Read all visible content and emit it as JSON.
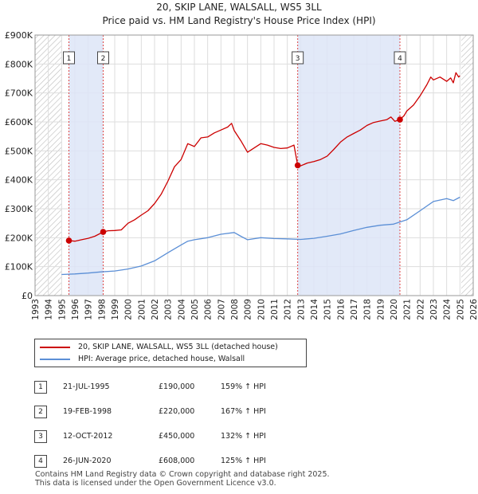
{
  "chart_data": {
    "type": "line",
    "title": "20, SKIP LANE, WALSALL, WS5 3LL",
    "subtitle": "Price paid vs. HM Land Registry's House Price Index (HPI)",
    "xlim": [
      1993,
      2026
    ],
    "ylim": [
      0,
      900000
    ],
    "y_ticks": [
      {
        "value": 0,
        "label": "£0"
      },
      {
        "value": 100000,
        "label": "£100K"
      },
      {
        "value": 200000,
        "label": "£200K"
      },
      {
        "value": 300000,
        "label": "£300K"
      },
      {
        "value": 400000,
        "label": "£400K"
      },
      {
        "value": 500000,
        "label": "£500K"
      },
      {
        "value": 600000,
        "label": "£600K"
      },
      {
        "value": 700000,
        "label": "£700K"
      },
      {
        "value": 800000,
        "label": "£800K"
      },
      {
        "value": 900000,
        "label": "£900K"
      }
    ],
    "x_ticks": [
      "1993",
      "1994",
      "1995",
      "1996",
      "1997",
      "1998",
      "1999",
      "2000",
      "2001",
      "2002",
      "2003",
      "2004",
      "2005",
      "2006",
      "2007",
      "2008",
      "2009",
      "2010",
      "2011",
      "2012",
      "2013",
      "2014",
      "2015",
      "2016",
      "2017",
      "2018",
      "2019",
      "2020",
      "2021",
      "2022",
      "2023",
      "2024",
      "2025",
      "2026"
    ],
    "hatched_ranges": [
      [
        1993,
        1995.0
      ],
      [
        2025.1,
        2026
      ]
    ],
    "shaded_ranges": [
      [
        1995.55,
        1998.13
      ],
      [
        2012.78,
        2020.48
      ]
    ],
    "series": [
      {
        "name": "20, SKIP LANE, WALSALL, WS5 3LL (detached house)",
        "color": "#cc0000",
        "points": [
          [
            1995.55,
            190000
          ],
          [
            1996.0,
            188000
          ],
          [
            1996.5,
            193000
          ],
          [
            1997.0,
            198000
          ],
          [
            1997.5,
            205000
          ],
          [
            1998.13,
            220000
          ],
          [
            1998.5,
            224000
          ],
          [
            1999.0,
            225000
          ],
          [
            1999.5,
            227000
          ],
          [
            2000.0,
            250000
          ],
          [
            2000.5,
            262000
          ],
          [
            2001.0,
            278000
          ],
          [
            2001.5,
            293000
          ],
          [
            2002.0,
            318000
          ],
          [
            2002.5,
            350000
          ],
          [
            2003.0,
            395000
          ],
          [
            2003.5,
            445000
          ],
          [
            2004.0,
            470000
          ],
          [
            2004.5,
            525000
          ],
          [
            2005.0,
            515000
          ],
          [
            2005.5,
            545000
          ],
          [
            2006.0,
            548000
          ],
          [
            2006.5,
            562000
          ],
          [
            2007.0,
            572000
          ],
          [
            2007.5,
            582000
          ],
          [
            2007.8,
            595000
          ],
          [
            2008.0,
            570000
          ],
          [
            2008.5,
            535000
          ],
          [
            2009.0,
            495000
          ],
          [
            2009.5,
            510000
          ],
          [
            2010.0,
            525000
          ],
          [
            2010.5,
            520000
          ],
          [
            2011.0,
            512000
          ],
          [
            2011.5,
            508000
          ],
          [
            2012.0,
            510000
          ],
          [
            2012.5,
            520000
          ],
          [
            2012.78,
            450000
          ],
          [
            2013.0,
            448000
          ],
          [
            2013.5,
            458000
          ],
          [
            2014.0,
            463000
          ],
          [
            2014.5,
            470000
          ],
          [
            2015.0,
            482000
          ],
          [
            2015.5,
            505000
          ],
          [
            2016.0,
            530000
          ],
          [
            2016.5,
            548000
          ],
          [
            2017.0,
            560000
          ],
          [
            2017.5,
            572000
          ],
          [
            2018.0,
            588000
          ],
          [
            2018.5,
            598000
          ],
          [
            2019.0,
            603000
          ],
          [
            2019.5,
            608000
          ],
          [
            2019.8,
            617000
          ],
          [
            2020.1,
            602000
          ],
          [
            2020.48,
            608000
          ],
          [
            2020.8,
            622000
          ],
          [
            2021.0,
            638000
          ],
          [
            2021.5,
            658000
          ],
          [
            2022.0,
            690000
          ],
          [
            2022.5,
            728000
          ],
          [
            2022.8,
            755000
          ],
          [
            2023.0,
            745000
          ],
          [
            2023.5,
            755000
          ],
          [
            2024.0,
            740000
          ],
          [
            2024.3,
            752000
          ],
          [
            2024.5,
            735000
          ],
          [
            2024.7,
            770000
          ],
          [
            2024.9,
            755000
          ],
          [
            2025.0,
            760000
          ]
        ]
      },
      {
        "name": "HPI: Average price, detached house, Walsall",
        "color": "#5b8fd6",
        "points": [
          [
            1995.0,
            73000
          ],
          [
            1996.0,
            75000
          ],
          [
            1997.0,
            78000
          ],
          [
            1998.0,
            82000
          ],
          [
            1999.0,
            85000
          ],
          [
            2000.0,
            92000
          ],
          [
            2001.0,
            102000
          ],
          [
            2002.0,
            120000
          ],
          [
            2003.0,
            148000
          ],
          [
            2004.0,
            175000
          ],
          [
            2004.5,
            188000
          ],
          [
            2005.0,
            193000
          ],
          [
            2006.0,
            200000
          ],
          [
            2007.0,
            212000
          ],
          [
            2008.0,
            218000
          ],
          [
            2008.5,
            205000
          ],
          [
            2009.0,
            193000
          ],
          [
            2010.0,
            200000
          ],
          [
            2011.0,
            197000
          ],
          [
            2012.0,
            196000
          ],
          [
            2013.0,
            194000
          ],
          [
            2014.0,
            198000
          ],
          [
            2015.0,
            205000
          ],
          [
            2016.0,
            213000
          ],
          [
            2017.0,
            225000
          ],
          [
            2018.0,
            236000
          ],
          [
            2019.0,
            243000
          ],
          [
            2020.0,
            247000
          ],
          [
            2021.0,
            262000
          ],
          [
            2022.0,
            293000
          ],
          [
            2023.0,
            325000
          ],
          [
            2024.0,
            335000
          ],
          [
            2024.5,
            328000
          ],
          [
            2025.0,
            340000
          ]
        ]
      }
    ],
    "sale_markers": [
      {
        "label": "1",
        "year": 1995.55,
        "price": 190000
      },
      {
        "label": "2",
        "year": 1998.13,
        "price": 220000
      },
      {
        "label": "3",
        "year": 2012.78,
        "price": 450000
      },
      {
        "label": "4",
        "year": 2020.48,
        "price": 608000
      }
    ]
  },
  "legend": [
    {
      "label": "20, SKIP LANE, WALSALL, WS5 3LL (detached house)",
      "color": "#cc0000"
    },
    {
      "label": "HPI: Average price, detached house, Walsall",
      "color": "#5b8fd6"
    }
  ],
  "transactions": [
    {
      "num": "1",
      "date": "21-JUL-1995",
      "price": "£190,000",
      "hpi": "159% ↑ HPI"
    },
    {
      "num": "2",
      "date": "19-FEB-1998",
      "price": "£220,000",
      "hpi": "167% ↑ HPI"
    },
    {
      "num": "3",
      "date": "12-OCT-2012",
      "price": "£450,000",
      "hpi": "132% ↑ HPI"
    },
    {
      "num": "4",
      "date": "26-JUN-2020",
      "price": "£608,000",
      "hpi": "125% ↑ HPI"
    }
  ],
  "footer": {
    "line1": "Contains HM Land Registry data © Crown copyright and database right 2025.",
    "line2": "This data is licensed under the Open Government Licence v3.0."
  }
}
